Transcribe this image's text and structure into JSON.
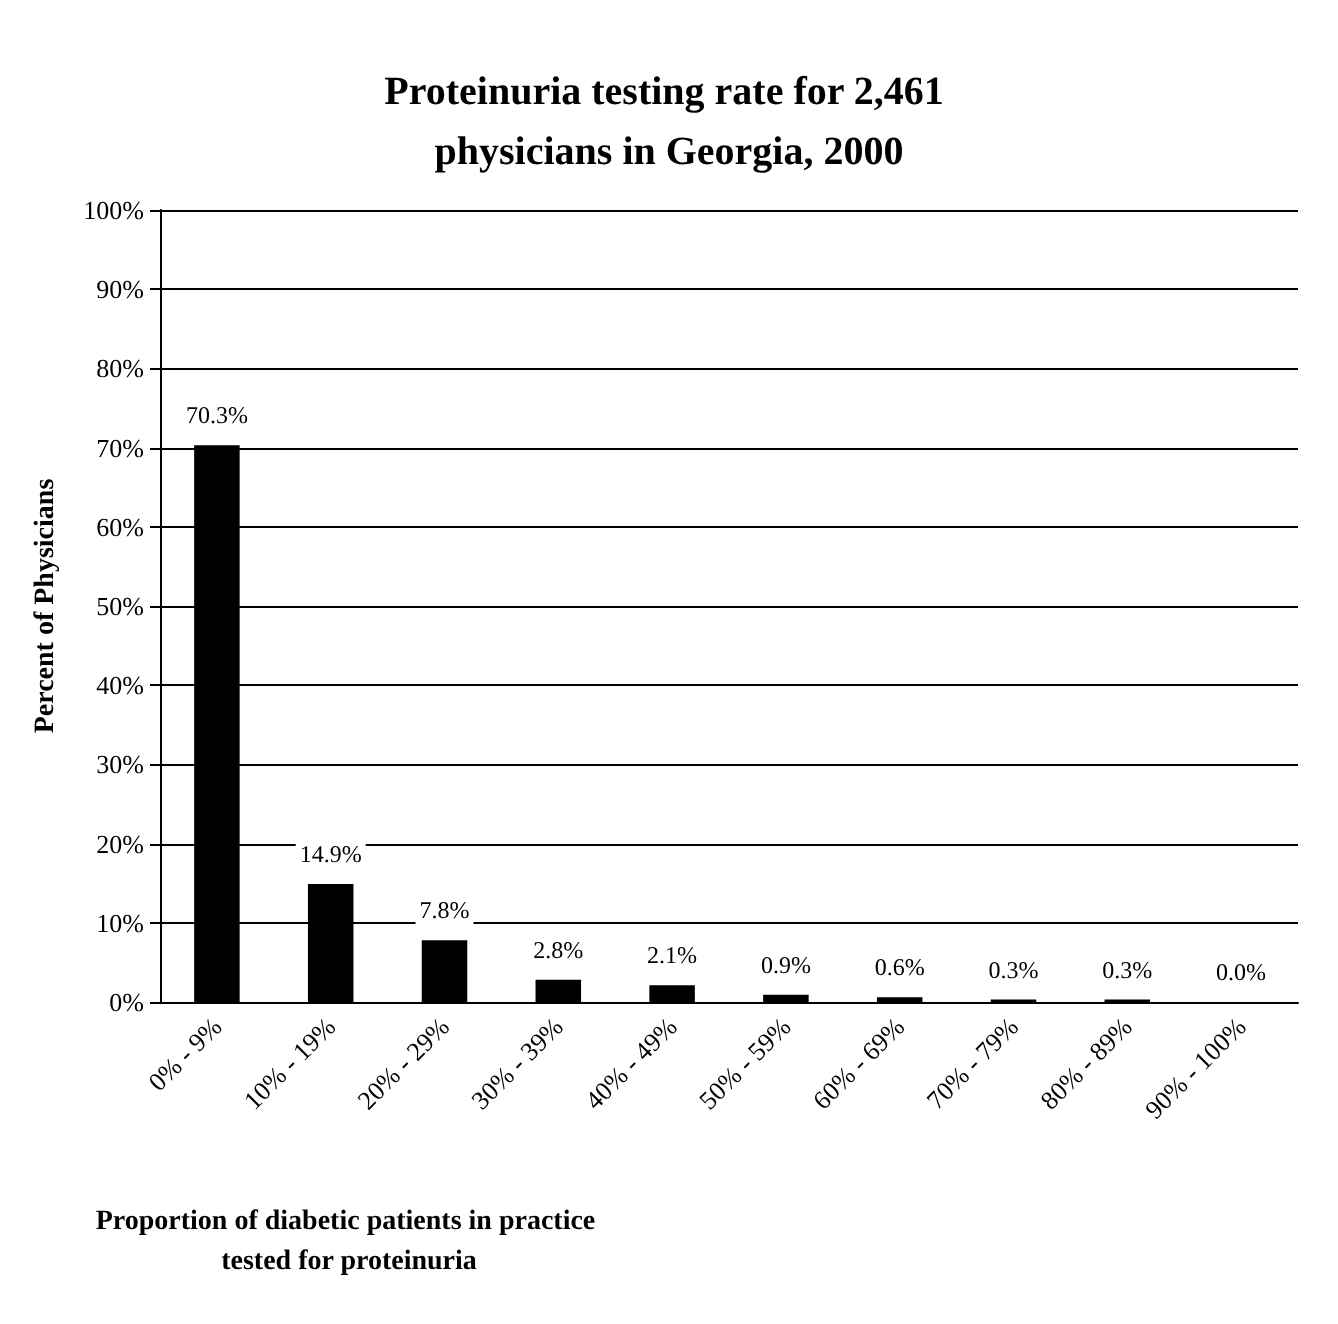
{
  "chart_data": {
    "type": "bar",
    "title": "Proteinuria testing rate for 2,461 physicians in Georgia, 2000",
    "xlabel": "Proportion of diabetic patients in practice tested for proteinuria",
    "ylabel": "Percent of Physicians",
    "categories": [
      "0% - 9%",
      "10% - 19%",
      "20% - 29%",
      "30% - 39%",
      "40% - 49%",
      "50% - 59%",
      "60% - 69%",
      "70% - 79%",
      "80% - 89%",
      "90% - 100%"
    ],
    "values": [
      70.3,
      14.9,
      7.8,
      2.8,
      2.1,
      0.9,
      0.6,
      0.3,
      0.3,
      0.0
    ],
    "value_labels": [
      "70.3%",
      "14.9%",
      "7.8%",
      "2.8%",
      "2.1%",
      "0.9%",
      "0.6%",
      "0.3%",
      "0.3%",
      "0.0%"
    ],
    "color": "#000000",
    "ylim": [
      0,
      100
    ],
    "yticks": [
      {
        "value": 0,
        "label": "0%"
      },
      {
        "value": 10,
        "label": "10%"
      },
      {
        "value": 20,
        "label": "20%"
      },
      {
        "value": 30,
        "label": "30%"
      },
      {
        "value": 40,
        "label": "40%"
      },
      {
        "value": 50,
        "label": "50%"
      },
      {
        "value": 60,
        "label": "60%"
      },
      {
        "value": 70,
        "label": "70%"
      },
      {
        "value": 80,
        "label": "80%"
      },
      {
        "value": 90,
        "label": "90%"
      },
      {
        "value": 100,
        "label": "100%"
      }
    ],
    "grid": "y"
  }
}
